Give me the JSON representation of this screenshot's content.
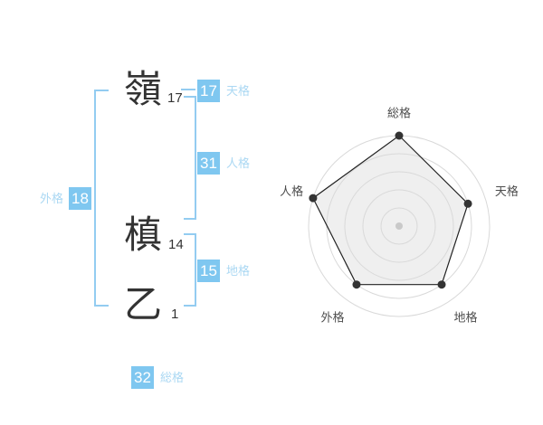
{
  "colors": {
    "badge_blue": "#7fc7f0",
    "label_blue": "#abd8f3",
    "bracket_blue": "#93ccf1",
    "text_dark": "#333333",
    "chart_label": "#4d4d4d",
    "ring": "#d9d9d9",
    "polygon_fill": "#efefef",
    "polygon_stroke": "#222222",
    "dot": "#333333",
    "center_dot": "#c9c9c9"
  },
  "name_analysis": {
    "characters": [
      {
        "char": "嶺",
        "strokes": "17"
      },
      {
        "char": "槙",
        "strokes": "14"
      },
      {
        "char": "乙",
        "strokes": "1"
      }
    ],
    "kaku": {
      "tenkaku": {
        "value": "17",
        "label": "天格"
      },
      "jinkaku": {
        "value": "31",
        "label": "人格"
      },
      "chikaku": {
        "value": "15",
        "label": "地格"
      },
      "gaikaku": {
        "value": "18",
        "label": "外格"
      },
      "soukaku": {
        "value": "32",
        "label": "総格"
      }
    }
  },
  "chart_data": {
    "type": "radar",
    "categories": [
      "総格",
      "天格",
      "地格",
      "外格",
      "人格"
    ],
    "values": [
      5,
      4,
      4,
      4,
      5
    ],
    "max": 5,
    "rings": 5,
    "grid": "circular-rings",
    "legend": "none",
    "title": "",
    "kaku_numbers": {
      "総格": 32,
      "天格": 17,
      "地格": 15,
      "外格": 18,
      "人格": 31
    }
  }
}
